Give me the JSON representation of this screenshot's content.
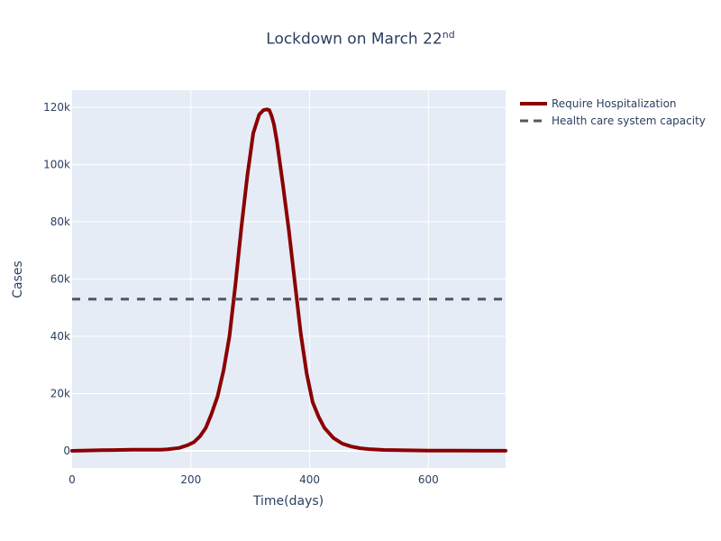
{
  "chart_data": {
    "type": "line",
    "title_main": "Lockdown on March 22",
    "title_sup": "nd",
    "xlabel": "Time(days)",
    "ylabel": "Cases",
    "xlim": [
      0,
      730
    ],
    "ylim": [
      -6000,
      126000
    ],
    "xticks": [
      0,
      200,
      400,
      600
    ],
    "xtick_labels": [
      "0",
      "200",
      "400",
      "600"
    ],
    "yticks": [
      0,
      20000,
      40000,
      60000,
      80000,
      100000,
      120000
    ],
    "ytick_labels": [
      "0",
      "20k",
      "40k",
      "60k",
      "80k",
      "100k",
      "120k"
    ],
    "grid": true,
    "legend_position": "top-right outside",
    "series": [
      {
        "name": "Require Hospitalization",
        "color": "#8b0000",
        "style": "solid",
        "x": [
          0,
          50,
          100,
          150,
          160,
          180,
          195,
          205,
          215,
          225,
          235,
          245,
          255,
          265,
          275,
          285,
          295,
          305,
          315,
          322,
          328,
          332,
          336,
          340,
          345,
          355,
          365,
          375,
          385,
          395,
          405,
          415,
          425,
          440,
          455,
          470,
          485,
          500,
          525,
          550,
          600,
          650,
          700,
          730
        ],
        "y": [
          0,
          200,
          350,
          400,
          500,
          1000,
          2000,
          3000,
          5000,
          8000,
          13000,
          19000,
          28000,
          40000,
          58000,
          78000,
          96000,
          111000,
          117500,
          119000,
          119300,
          119000,
          117000,
          114000,
          108000,
          93000,
          77000,
          59000,
          41000,
          27000,
          17000,
          12000,
          8000,
          4500,
          2500,
          1500,
          900,
          600,
          300,
          200,
          80,
          40,
          20,
          10
        ]
      },
      {
        "name": "Health care system capacity",
        "color": "#555566",
        "style": "dash",
        "x": [
          0,
          730
        ],
        "y": [
          53000,
          53000
        ]
      }
    ]
  }
}
